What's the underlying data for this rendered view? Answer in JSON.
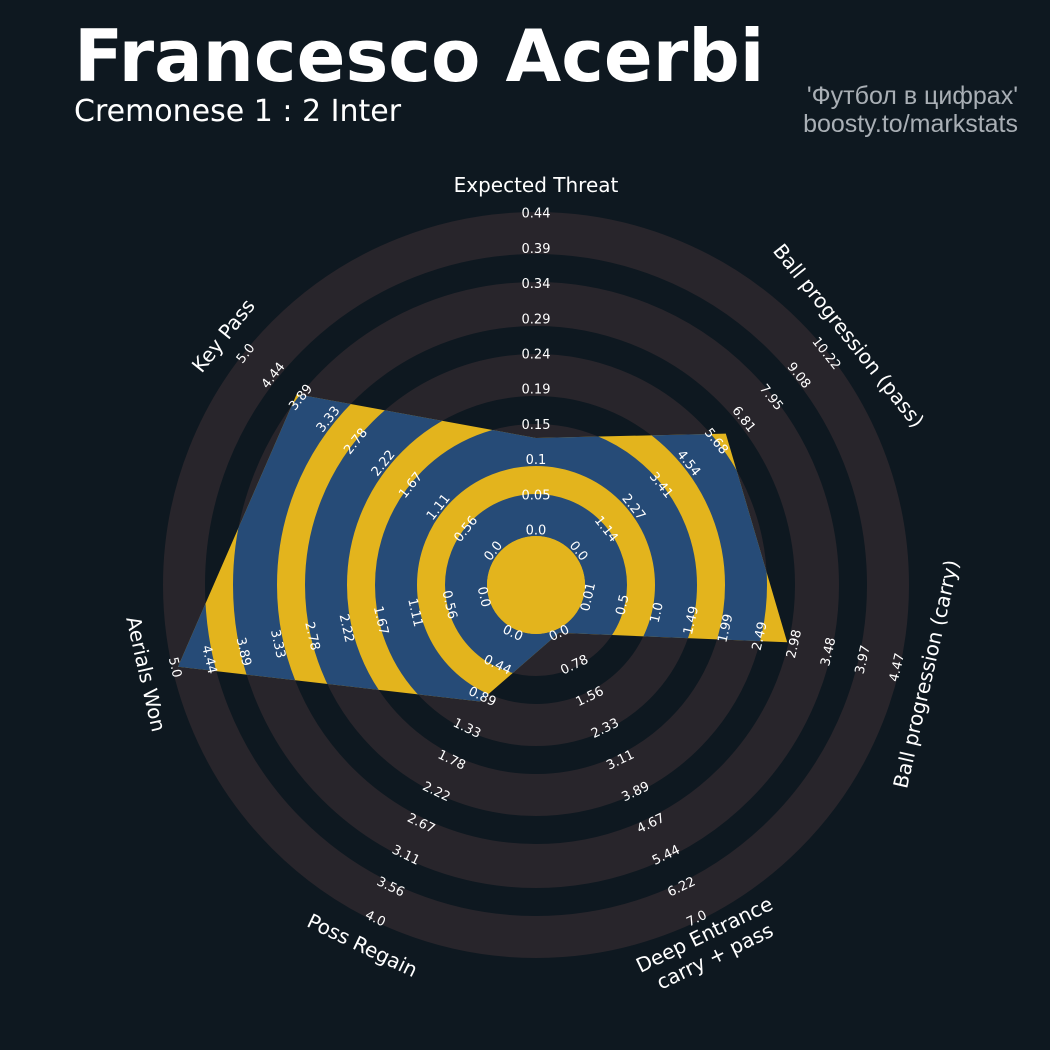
{
  "header": {
    "title": "Francesco Acerbi",
    "subtitle": "Cremonese 1 : 2 Inter",
    "credit_line1": "'Футбол в цифрах'",
    "credit_line2": "boosty.to/markstats"
  },
  "chart_data": {
    "type": "radar",
    "title": "Francesco Acerbi",
    "subtitle": "Cremonese 1 : 2 Inter",
    "colors": {
      "background": "#0e1820",
      "ring": "#28252b",
      "polygon": "#e3b41d",
      "polygon_ring": "#264b77",
      "text": "#ffffff"
    },
    "params": [
      {
        "label": [
          "Expected Threat"
        ],
        "min": 0.0,
        "max": 0.44,
        "value": 0.13,
        "ticks": [
          "0.0",
          "0.05",
          "0.1",
          "0.15",
          "0.19",
          "0.24",
          "0.29",
          "0.34",
          "0.39",
          "0.44"
        ]
      },
      {
        "label": [
          "Ball progression (pass)"
        ],
        "min": 0.0,
        "max": 10.22,
        "value": 6.1,
        "ticks": [
          "0.0",
          "1.14",
          "2.27",
          "3.41",
          "4.54",
          "5.68",
          "6.81",
          "7.95",
          "9.08",
          "10.22"
        ]
      },
      {
        "label": [
          "Ball progression (carry)"
        ],
        "min": 0.01,
        "max": 4.47,
        "value": 2.88,
        "ticks": [
          "0.01",
          "0.5",
          "1.0",
          "1.49",
          "1.99",
          "2.49",
          "2.98",
          "3.48",
          "3.97",
          "4.47"
        ]
      },
      {
        "label": [
          "Deep Entrance",
          "carry + pass"
        ],
        "min": 0.0,
        "max": 7.0,
        "value": 0.0,
        "ticks": [
          "0.0",
          "0.78",
          "1.56",
          "2.33",
          "3.11",
          "3.89",
          "4.67",
          "5.44",
          "6.22",
          "7.0"
        ]
      },
      {
        "label": [
          "Poss Regain"
        ],
        "min": 0.0,
        "max": 4.0,
        "value": 0.96,
        "ticks": [
          "0.0",
          "0.44",
          "0.89",
          "1.33",
          "1.78",
          "2.22",
          "2.67",
          "3.11",
          "3.56",
          "4.0"
        ]
      },
      {
        "label": [
          "Aerials Won"
        ],
        "min": 0.0,
        "max": 5.0,
        "value": 4.94,
        "ticks": [
          "0.0",
          "0.56",
          "1.11",
          "1.67",
          "2.22",
          "2.78",
          "3.33",
          "3.89",
          "4.44",
          "5.0"
        ]
      },
      {
        "label": [
          "Key Pass"
        ],
        "min": 0.0,
        "max": 5.0,
        "value": 3.98,
        "ticks": [
          "0.0",
          "0.56",
          "1.11",
          "1.67",
          "2.22",
          "2.78",
          "3.33",
          "3.89",
          "4.44",
          "5.0"
        ]
      }
    ]
  }
}
